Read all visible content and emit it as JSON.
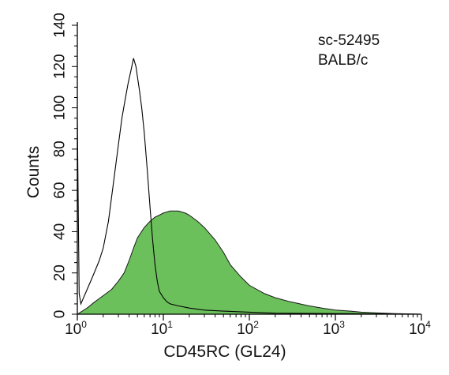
{
  "chart_data": {
    "type": "area",
    "xlabel": "CD45RC (GL24)",
    "ylabel": "Counts",
    "x_scale": "log",
    "xlim": [
      1,
      10000
    ],
    "ylim": [
      0,
      140
    ],
    "x_ticks": [
      {
        "value": 1,
        "base": "10",
        "exp": "0"
      },
      {
        "value": 10,
        "base": "10",
        "exp": "1"
      },
      {
        "value": 100,
        "base": "10",
        "exp": "2"
      },
      {
        "value": 1000,
        "base": "10",
        "exp": "3"
      },
      {
        "value": 10000,
        "base": "10",
        "exp": "4"
      }
    ],
    "y_ticks": [
      0,
      20,
      40,
      60,
      80,
      100,
      120,
      140
    ],
    "annotations": [
      "sc-52495",
      "BALB/c"
    ],
    "series": [
      {
        "style": "outline",
        "color": "#000000",
        "x": [
          1,
          1.05,
          1.1,
          1.3,
          1.5,
          1.8,
          2.0,
          2.3,
          2.6,
          3.0,
          3.3,
          3.6,
          3.9,
          4.2,
          4.5,
          4.8,
          5.0,
          5.3,
          5.6,
          6.0,
          6.5,
          7.0,
          7.5,
          8.0,
          8.5,
          9.0,
          10,
          11,
          12,
          15,
          20,
          30,
          50,
          100,
          200,
          1000,
          10000
        ],
        "y": [
          95,
          10,
          5,
          12,
          18,
          26,
          32,
          45,
          62,
          82,
          95,
          104,
          112,
          118,
          124,
          120,
          115,
          108,
          100,
          88,
          70,
          52,
          36,
          24,
          16,
          11,
          8,
          6,
          5,
          4,
          3,
          2,
          1.5,
          1,
          0.5,
          0.3,
          0
        ]
      },
      {
        "style": "filled",
        "color": "#6cc05c",
        "x": [
          1,
          1.3,
          1.6,
          2.0,
          2.5,
          3.0,
          3.5,
          4.0,
          4.5,
          5.0,
          6.0,
          7.0,
          8.0,
          9.0,
          10,
          12,
          15,
          18,
          20,
          25,
          30,
          40,
          50,
          60,
          80,
          100,
          150,
          200,
          300,
          500,
          700,
          1000,
          1500,
          2000,
          3000,
          5000,
          10000
        ],
        "y": [
          0,
          3,
          6,
          9,
          12,
          16,
          20,
          26,
          32,
          37,
          42,
          45,
          47,
          48,
          49,
          50,
          50,
          49,
          48,
          45,
          42,
          36,
          30,
          24,
          18,
          14,
          10,
          8,
          6,
          4,
          3,
          2,
          1.5,
          1,
          0.7,
          0.3,
          0
        ]
      }
    ]
  }
}
